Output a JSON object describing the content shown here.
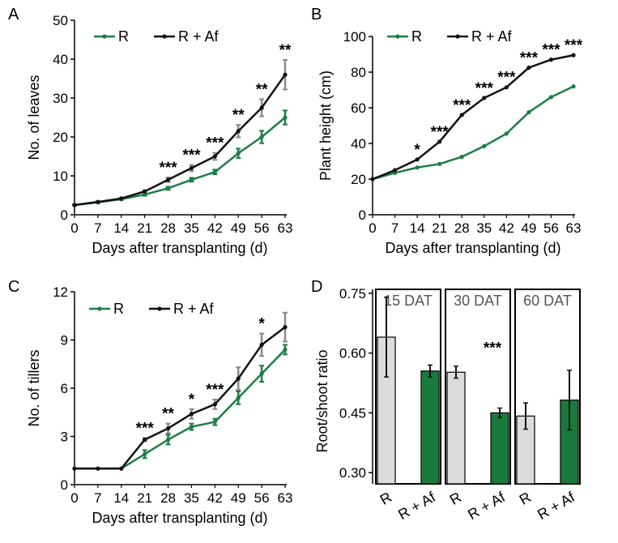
{
  "colors": {
    "R": "#1e7d46",
    "R_Af": "#111111",
    "error_gray": "#8a8a8a",
    "bar_R": "#dcdcdc",
    "bar_RAf": "#1a7a3e"
  },
  "chart_data": [
    {
      "panel": "A",
      "type": "line",
      "ylabel": "No. of leaves",
      "xlabel": "Days after transplanting (d)",
      "xlim": [
        0,
        63
      ],
      "ylim": [
        0,
        50
      ],
      "xticks": [
        "0",
        "7",
        "14",
        "21",
        "28",
        "35",
        "42",
        "49",
        "56",
        "63"
      ],
      "yticks": [
        "0",
        "10",
        "20",
        "30",
        "40",
        "50"
      ],
      "x": [
        0,
        7,
        14,
        21,
        28,
        35,
        42,
        49,
        56,
        63
      ],
      "series": [
        {
          "name": "R",
          "values": [
            2.5,
            3.2,
            4.0,
            5.2,
            6.8,
            9.0,
            11.0,
            15.8,
            20.0,
            25.0
          ],
          "err": [
            0.2,
            0.2,
            0.2,
            0.3,
            0.4,
            0.5,
            0.6,
            1.2,
            1.6,
            1.8
          ]
        },
        {
          "name": "R + Af",
          "values": [
            2.5,
            3.3,
            4.2,
            6.0,
            9.0,
            12.0,
            15.0,
            21.5,
            27.5,
            36.0
          ],
          "err": [
            0.2,
            0.2,
            0.2,
            0.3,
            0.6,
            0.8,
            0.9,
            1.6,
            2.2,
            3.8
          ]
        }
      ],
      "sig": [
        {
          "x": 28,
          "text": "***"
        },
        {
          "x": 35,
          "text": "***"
        },
        {
          "x": 42,
          "text": "***"
        },
        {
          "x": 49,
          "text": "**"
        },
        {
          "x": 56,
          "text": "**"
        },
        {
          "x": 63,
          "text": "**"
        }
      ],
      "legend": [
        "R",
        "R + Af"
      ]
    },
    {
      "panel": "B",
      "type": "line",
      "ylabel": "Plant height (cm)",
      "xlabel": "Days after transplanting (d)",
      "xlim": [
        0,
        63
      ],
      "ylim": [
        0,
        100
      ],
      "xticks": [
        "0",
        "7",
        "14",
        "21",
        "28",
        "35",
        "42",
        "49",
        "56",
        "63"
      ],
      "yticks": [
        "0",
        "20",
        "40",
        "60",
        "80",
        "100"
      ],
      "x": [
        0,
        7,
        14,
        21,
        28,
        35,
        42,
        49,
        56,
        63
      ],
      "series": [
        {
          "name": "R",
          "values": [
            20,
            23.5,
            26.5,
            28.5,
            32.5,
            38.5,
            45.5,
            57.5,
            66,
            72
          ]
        },
        {
          "name": "R + Af",
          "values": [
            20,
            25,
            31,
            41,
            56,
            65.5,
            71.5,
            82.5,
            87,
            89.5
          ]
        }
      ],
      "sig": [
        {
          "x": 14,
          "text": "*"
        },
        {
          "x": 21,
          "text": "***"
        },
        {
          "x": 28,
          "text": "***"
        },
        {
          "x": 35,
          "text": "***"
        },
        {
          "x": 42,
          "text": "***"
        },
        {
          "x": 49,
          "text": "***"
        },
        {
          "x": 56,
          "text": "***"
        },
        {
          "x": 63,
          "text": "***"
        }
      ],
      "legend": [
        "R",
        "R + Af"
      ]
    },
    {
      "panel": "C",
      "type": "line",
      "ylabel": "No. of tillers",
      "xlabel": "Days after transplanting (d)",
      "xlim": [
        0,
        63
      ],
      "ylim": [
        0,
        12
      ],
      "xticks": [
        "0",
        "7",
        "14",
        "21",
        "28",
        "35",
        "42",
        "49",
        "56",
        "63"
      ],
      "yticks": [
        "0",
        "3",
        "6",
        "9",
        "12"
      ],
      "x": [
        0,
        7,
        14,
        21,
        28,
        35,
        42,
        49,
        56,
        63
      ],
      "series": [
        {
          "name": "R",
          "values": [
            1,
            1,
            1,
            1.9,
            2.8,
            3.6,
            3.9,
            5.4,
            6.9,
            8.4
          ],
          "err": [
            0,
            0,
            0,
            0.25,
            0.3,
            0.2,
            0.2,
            0.4,
            0.5,
            0.3
          ]
        },
        {
          "name": "R + Af",
          "values": [
            1,
            1,
            1,
            2.8,
            3.5,
            4.4,
            5.0,
            6.6,
            8.7,
            9.8
          ],
          "err": [
            0,
            0,
            0,
            0.1,
            0.3,
            0.3,
            0.3,
            0.7,
            0.7,
            0.9
          ]
        }
      ],
      "sig": [
        {
          "x": 21,
          "text": "***"
        },
        {
          "x": 28,
          "text": "**"
        },
        {
          "x": 35,
          "text": "*"
        },
        {
          "x": 42,
          "text": "***"
        },
        {
          "x": 56,
          "text": "*"
        }
      ],
      "legend": [
        "R",
        "R + Af"
      ]
    },
    {
      "panel": "D",
      "type": "bar",
      "ylabel": "Root/shoot ratio",
      "ylim": [
        0.28,
        0.76
      ],
      "yticks": [
        "0.30",
        "0.45",
        "0.60",
        "0.75"
      ],
      "groups": [
        {
          "label": "15 DAT",
          "bars": [
            {
              "name": "R",
              "value": 0.64,
              "err": 0.1
            },
            {
              "name": "R + Af",
              "value": 0.555,
              "err": 0.015
            }
          ],
          "sig": ""
        },
        {
          "label": "30 DAT",
          "bars": [
            {
              "name": "R",
              "value": 0.552,
              "err": 0.015
            },
            {
              "name": "R + Af",
              "value": 0.45,
              "err": 0.012
            }
          ],
          "sig": "***"
        },
        {
          "label": "60 DAT",
          "bars": [
            {
              "name": "R",
              "value": 0.442,
              "err": 0.033
            },
            {
              "name": "R + Af",
              "value": 0.482,
              "err": 0.075
            }
          ],
          "sig": ""
        }
      ]
    }
  ],
  "panels": {
    "A": "A",
    "B": "B",
    "C": "C",
    "D": "D"
  }
}
